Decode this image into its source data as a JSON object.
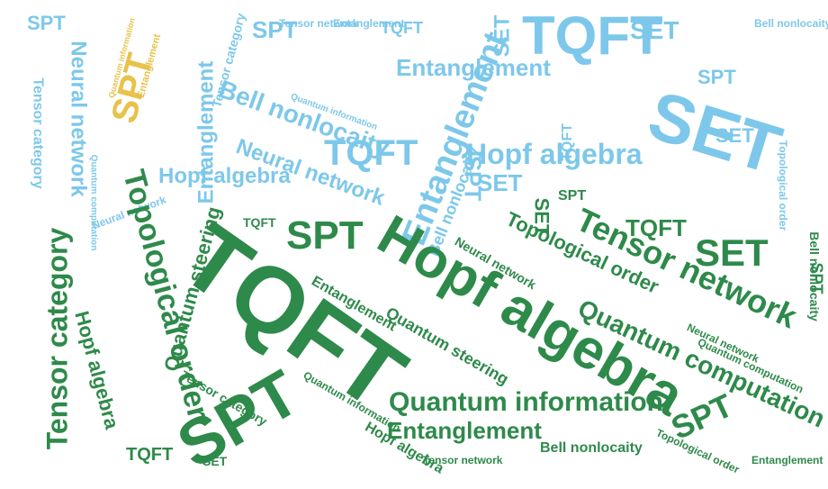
{
  "palette": {
    "light": "#7dc8ea",
    "green": "#2e8a4a",
    "gold": "#e8c24a",
    "background": "#ffffff"
  },
  "words": {
    "tqft": "TQFT",
    "spt": "SPT",
    "set": "SET",
    "hopf_algebra": "Hopf algebra",
    "tensor_network": "Tensor network",
    "tensor_category": "Tensor category",
    "topological_order": "Topological order",
    "quantum_computation": "Quantum computation",
    "quantum_information": "Quantum information",
    "quantum_steering": "Quantum steering",
    "entanglement": "Entanglement",
    "bell_nonlocaity": "Bell nonlocaity",
    "neural_network": "Neural network"
  }
}
